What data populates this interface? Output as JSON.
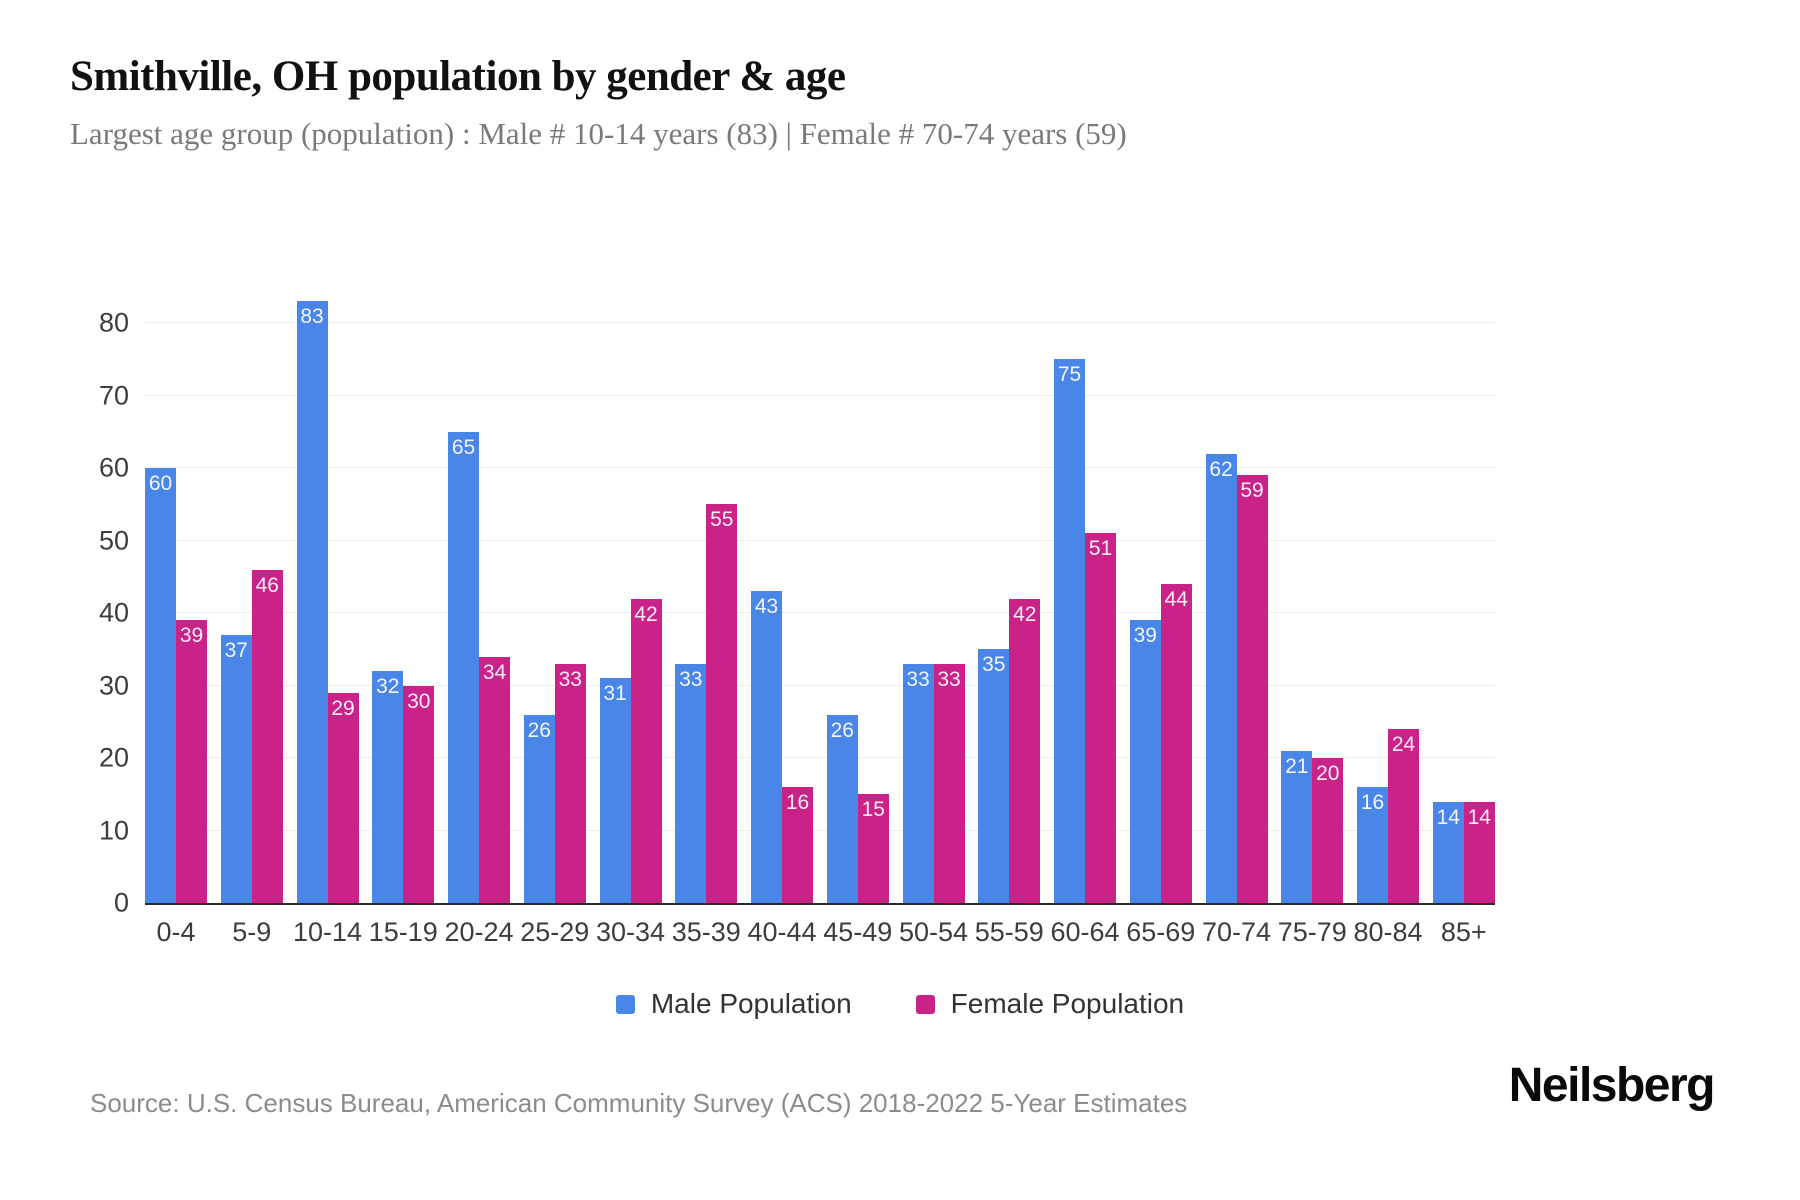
{
  "header": {
    "title": "Smithville, OH population by gender & age",
    "subtitle": "Largest age group (population) : Male # 10-14 years (83) | Female # 70-74 years (59)"
  },
  "chart_data": {
    "type": "bar",
    "title": "Smithville, OH population by gender & age",
    "categories": [
      "0-4",
      "5-9",
      "10-14",
      "15-19",
      "20-24",
      "25-29",
      "30-34",
      "35-39",
      "40-44",
      "45-49",
      "50-54",
      "55-59",
      "60-64",
      "65-69",
      "70-74",
      "75-79",
      "80-84",
      "85+"
    ],
    "series": [
      {
        "name": "Male Population",
        "color": "#4a86e8",
        "values": [
          60,
          37,
          83,
          32,
          65,
          26,
          31,
          33,
          43,
          26,
          33,
          35,
          75,
          39,
          62,
          21,
          16,
          14
        ]
      },
      {
        "name": "Female Population",
        "color": "#c9238a",
        "values": [
          39,
          46,
          29,
          30,
          34,
          33,
          42,
          55,
          16,
          15,
          33,
          42,
          51,
          44,
          59,
          20,
          24,
          14
        ]
      }
    ],
    "xlabel": "",
    "ylabel": "",
    "ylim": [
      0,
      80
    ],
    "yticks": [
      0,
      10,
      20,
      30,
      40,
      50,
      60,
      70,
      80
    ],
    "grid": "horizontal",
    "legend_position": "bottom",
    "bar_value_labels": "inside-top, white"
  },
  "footer": {
    "source": "Source: U.S. Census Bureau, American Community Survey (ACS) 2018-2022 5-Year Estimates",
    "brand": "Neilsberg"
  }
}
